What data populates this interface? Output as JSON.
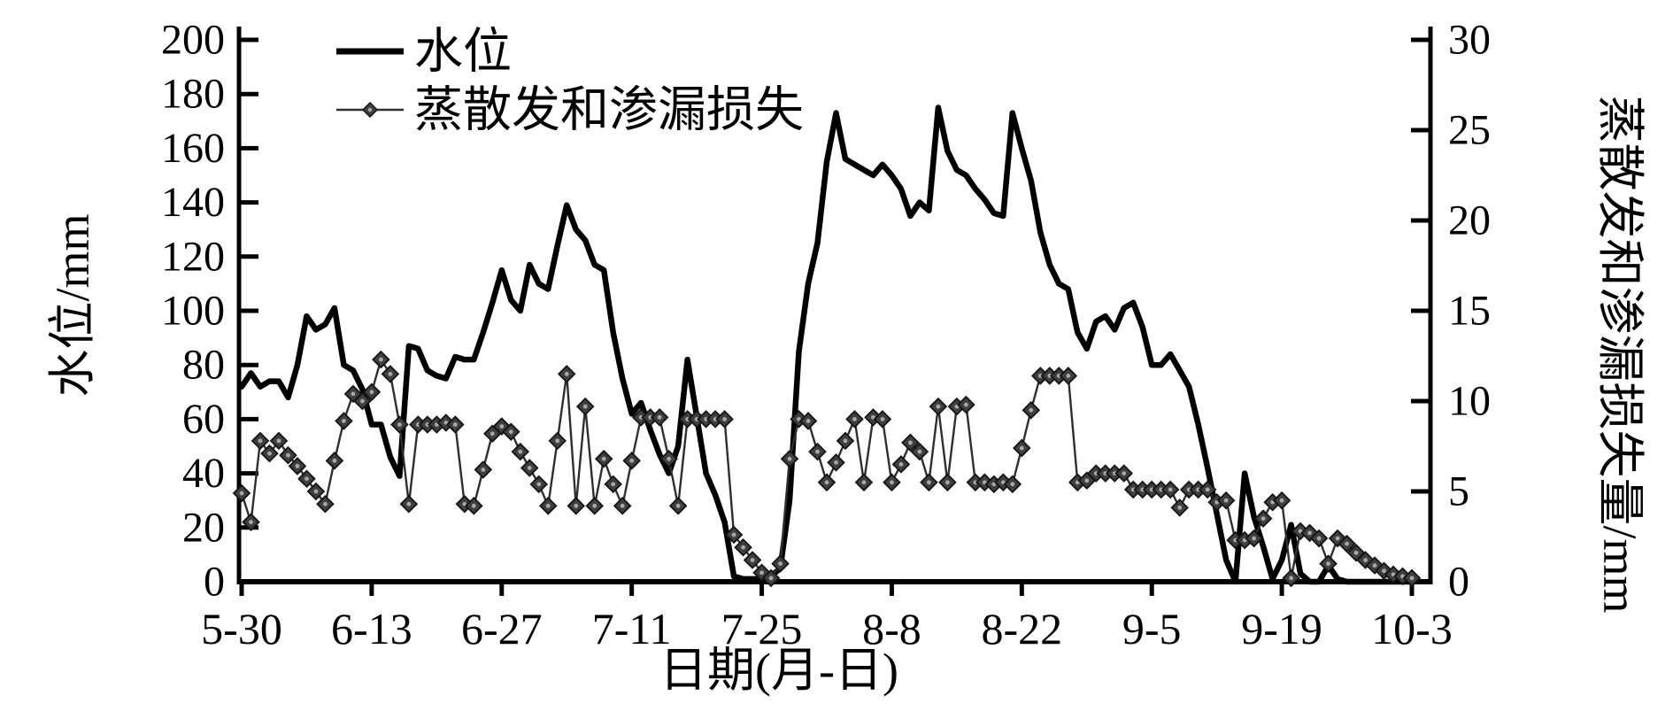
{
  "figure": {
    "background": "#ffffff",
    "axes_color": "#000000",
    "legend": {
      "items": [
        {
          "label": "水位",
          "swatch": "thick-line"
        },
        {
          "label": "蒸散发和渗漏损失",
          "swatch": "line-with-diamond"
        }
      ]
    }
  },
  "chart_data": {
    "type": "line",
    "title": "",
    "xlabel": "日期(月-日)",
    "ylabel_left": "水位/mm",
    "ylabel_right": "蒸散发和渗漏损失量/mm",
    "x_tick_labels": [
      "5-30",
      "6-13",
      "6-27",
      "7-11",
      "7-25",
      "8-8",
      "8-22",
      "9-5",
      "9-19",
      "10-3"
    ],
    "days_per_tick": 14,
    "n_points": 127,
    "ylim_left": [
      0,
      200
    ],
    "ytick_step_left": 20,
    "ylim_right": [
      0,
      30
    ],
    "ytick_step_right": 5,
    "grid": false,
    "legend_position": "top-left-inside",
    "series": [
      {
        "name": "水位",
        "axis": "left",
        "color": "#000000",
        "marker": "none",
        "values": [
          72,
          77,
          72,
          74,
          74,
          68,
          80,
          98,
          93,
          95,
          101,
          80,
          78,
          71,
          58,
          58,
          46,
          39,
          87,
          86,
          78,
          76,
          75,
          83,
          82,
          82,
          92,
          103,
          115,
          104,
          100,
          117,
          110,
          108,
          124,
          139,
          130,
          126,
          117,
          115,
          92,
          75,
          62,
          66,
          56,
          47,
          40,
          50,
          82,
          61,
          40,
          32,
          22,
          2,
          1,
          1,
          1,
          2,
          5,
          30,
          85,
          110,
          125,
          155,
          173,
          156,
          154,
          152,
          150,
          154,
          150,
          145,
          135,
          140,
          137,
          175,
          159,
          152,
          150,
          145,
          141,
          136,
          135,
          173,
          160,
          148,
          129,
          117,
          110,
          108,
          92,
          86,
          96,
          98,
          93,
          101,
          103,
          94,
          80,
          80,
          84,
          78,
          72,
          58,
          42,
          25,
          8,
          0,
          40,
          24,
          13,
          1,
          8,
          21,
          3,
          0,
          0,
          6,
          1,
          0,
          0,
          0,
          0,
          0,
          0,
          0,
          0
        ]
      },
      {
        "name": "蒸散发和渗漏损失",
        "axis": "right",
        "color": "#2f2f2f",
        "marker": "diamond",
        "marker_fill": "#3f3f3f",
        "marker_edge": "#141414",
        "marker_dot": "#a8a8a8",
        "values": [
          4.9,
          3.3,
          7.8,
          7.1,
          7.8,
          7.0,
          6.4,
          5.7,
          5.0,
          4.3,
          6.7,
          8.9,
          10.4,
          10.0,
          10.5,
          12.3,
          11.5,
          8.7,
          4.3,
          8.7,
          8.7,
          8.7,
          8.8,
          8.7,
          4.3,
          4.2,
          6.2,
          8.2,
          8.6,
          8.3,
          7.2,
          6.3,
          5.4,
          4.2,
          7.8,
          11.5,
          4.2,
          9.7,
          4.2,
          6.8,
          5.4,
          4.2,
          6.7,
          9.1,
          9.1,
          9.1,
          6.8,
          4.2,
          9.0,
          9.0,
          9.0,
          9.0,
          9.0,
          2.6,
          1.9,
          1.2,
          0.5,
          0.2,
          1.0,
          6.8,
          9.0,
          8.9,
          7.2,
          5.5,
          6.6,
          7.8,
          9.0,
          5.5,
          9.1,
          9.0,
          5.5,
          6.5,
          7.7,
          7.2,
          5.5,
          9.7,
          5.5,
          9.7,
          9.8,
          5.5,
          5.5,
          5.4,
          5.5,
          5.4,
          7.4,
          9.5,
          11.4,
          11.4,
          11.4,
          11.4,
          5.5,
          5.6,
          6.0,
          6.0,
          6.0,
          6.0,
          5.1,
          5.1,
          5.1,
          5.1,
          5.1,
          4.1,
          5.1,
          5.1,
          5.1,
          4.4,
          4.5,
          2.3,
          2.3,
          2.4,
          3.5,
          4.4,
          4.5,
          0.2,
          2.8,
          2.7,
          2.4,
          1.0,
          2.4,
          2.1,
          1.6,
          1.2,
          0.9,
          0.6,
          0.4,
          0.3,
          0.2
        ]
      }
    ]
  }
}
